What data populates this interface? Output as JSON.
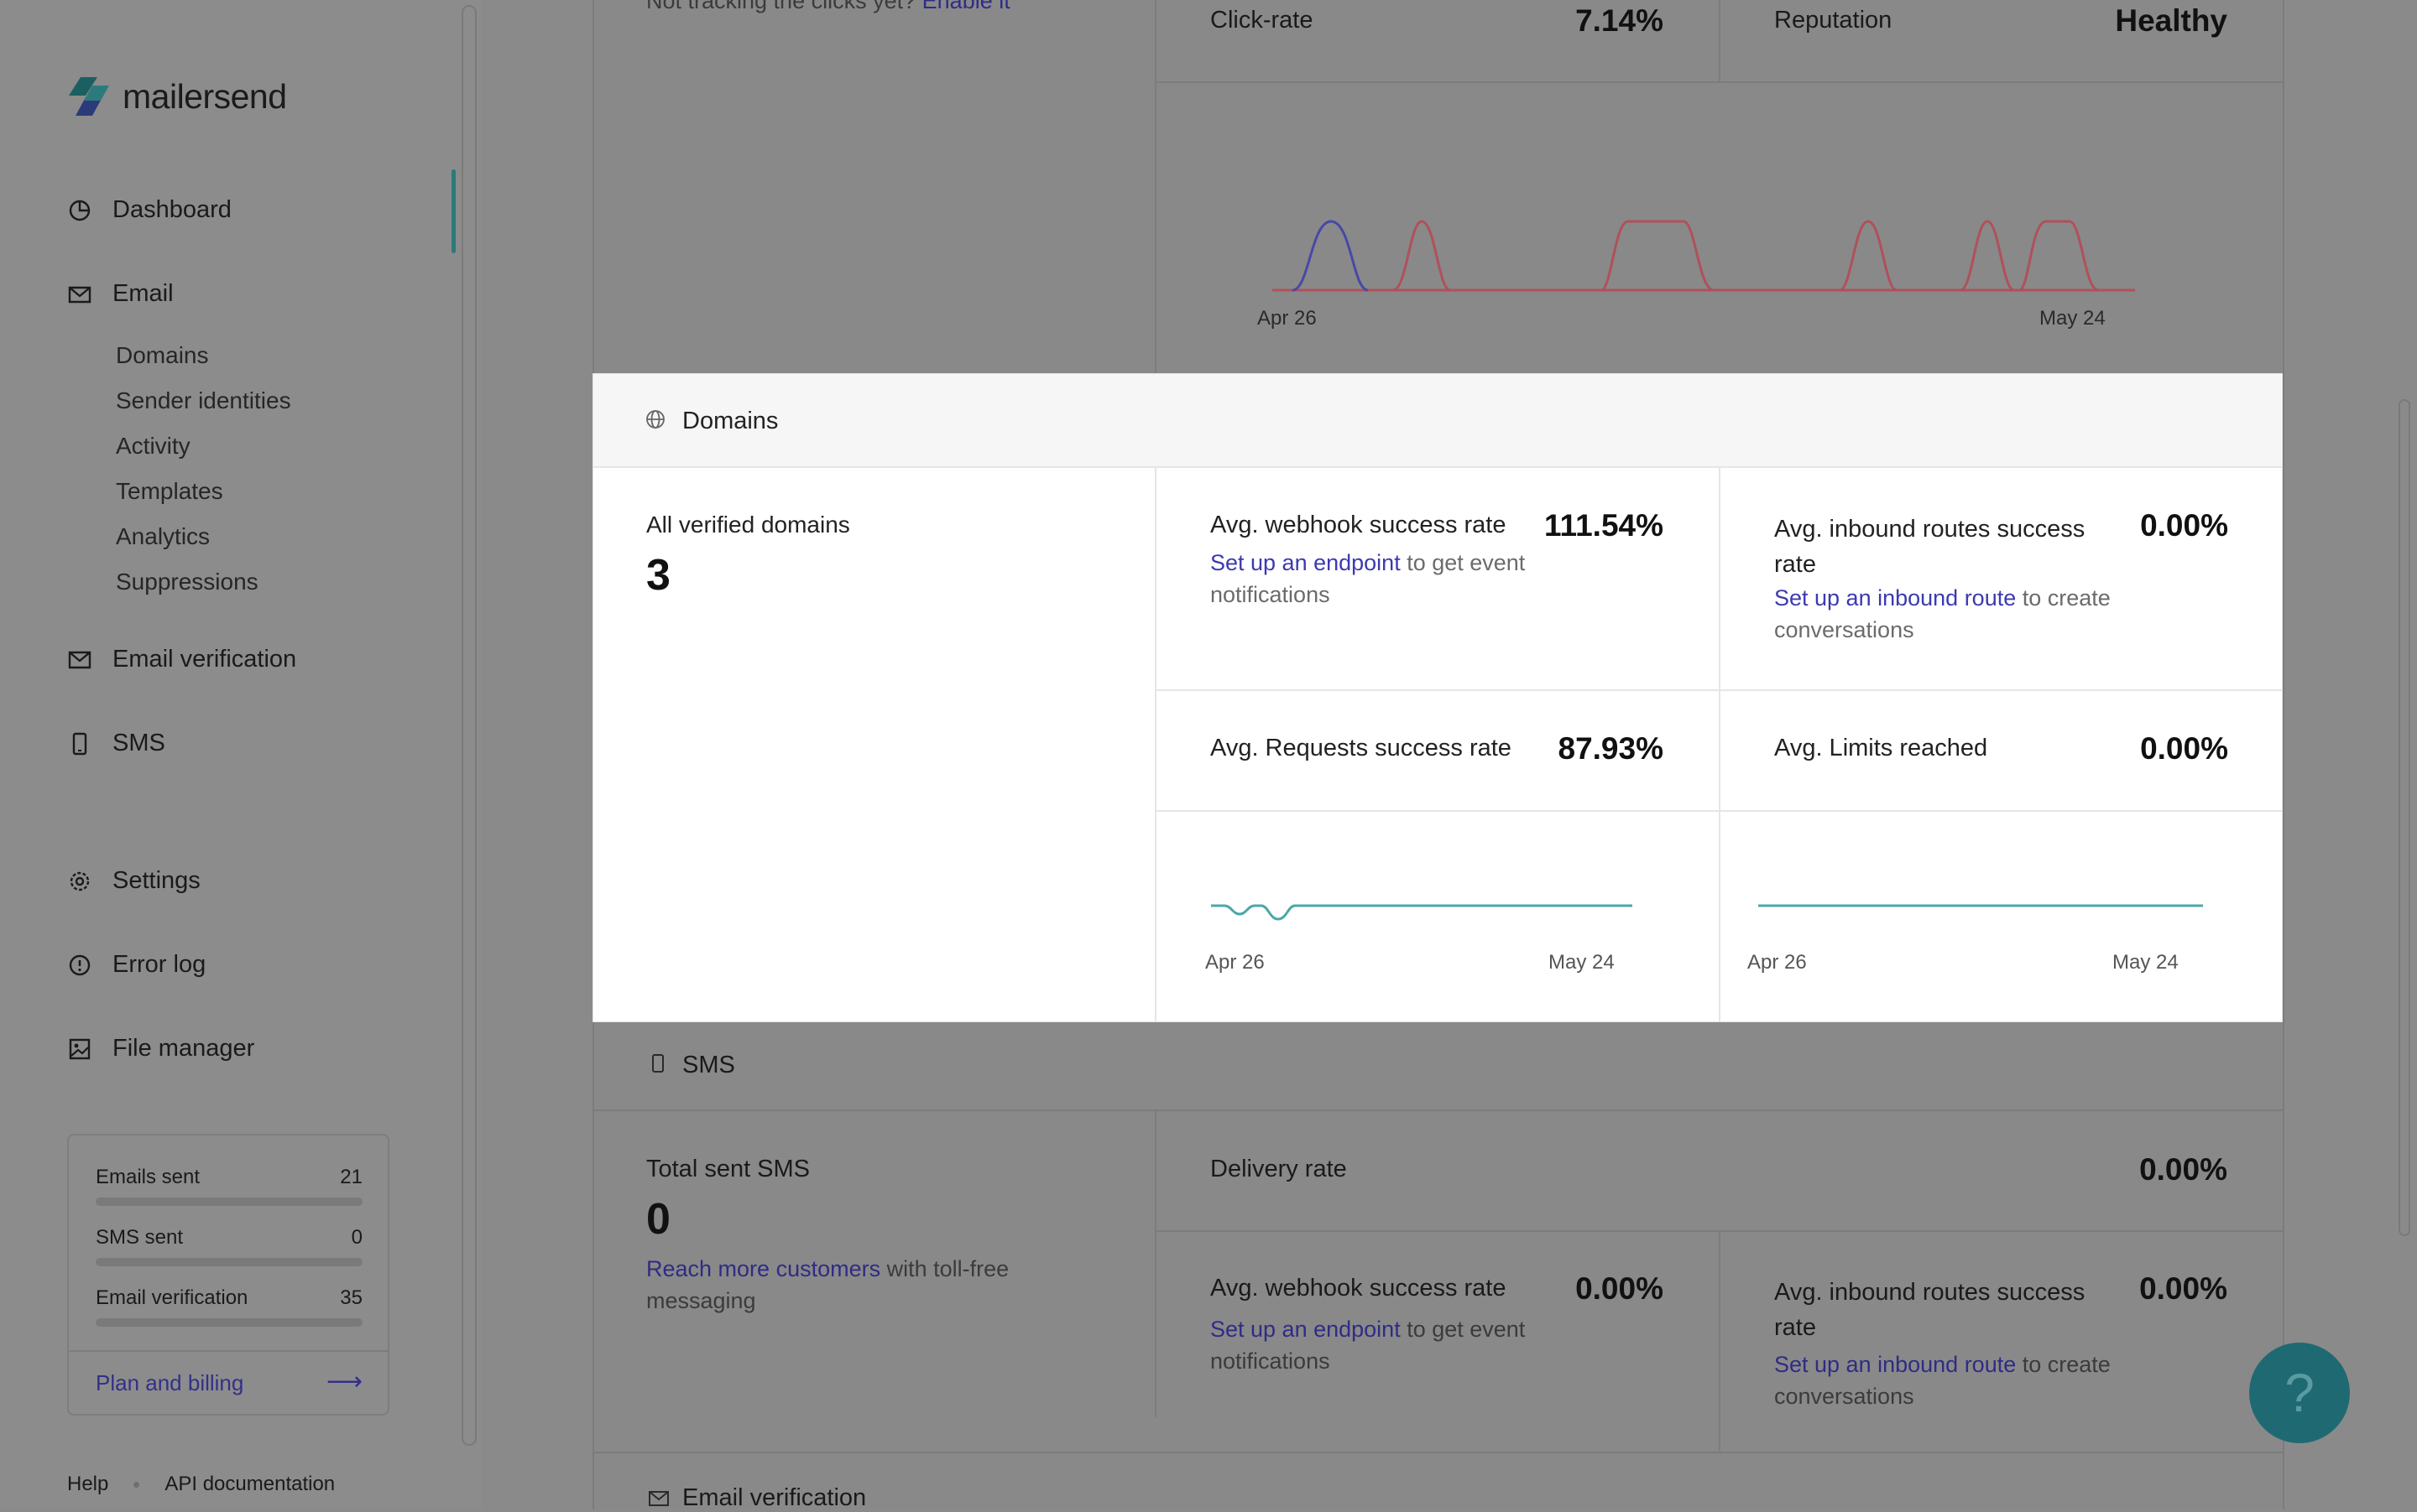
{
  "brand": {
    "name": "mailersend"
  },
  "sidebar": {
    "nav": {
      "dashboard": "Dashboard",
      "email": "Email",
      "email_verification": "Email verification",
      "sms": "SMS",
      "settings": "Settings",
      "error_log": "Error log",
      "file_manager": "File manager"
    },
    "email_sub": [
      "Domains",
      "Sender identities",
      "Activity",
      "Templates",
      "Analytics",
      "Suppressions"
    ],
    "usage": {
      "rows": [
        {
          "label": "Emails sent",
          "value": "21"
        },
        {
          "label": "SMS sent",
          "value": "0"
        },
        {
          "label": "Email verification",
          "value": "35"
        }
      ],
      "plan_link": "Plan and billing",
      "plan_arrow": "⟶"
    },
    "footer": {
      "help": "Help",
      "api_docs": "API documentation"
    }
  },
  "email_section": {
    "tracking_note": "Not tracking the clicks yet?",
    "tracking_link": "Enable it",
    "click_rate_label": "Click-rate",
    "click_rate_value": "7.14%",
    "reputation_label": "Reputation",
    "reputation_value": "Healthy",
    "chart_axis": {
      "start": "Apr 26",
      "end": "May 24"
    }
  },
  "domains": {
    "title": "Domains",
    "all_verified_label": "All verified domains",
    "all_verified_value": "3",
    "webhook_label": "Avg. webhook success rate",
    "webhook_value": "111.54%",
    "webhook_link": "Set up an endpoint",
    "webhook_suffix": " to get event notifications",
    "inbound_label": "Avg. inbound routes success rate",
    "inbound_value": "0.00%",
    "inbound_link": "Set up an inbound route",
    "inbound_suffix": " to create conversations",
    "requests_label": "Avg. Requests success rate",
    "requests_value": "87.93%",
    "limits_label": "Avg. Limits reached",
    "limits_value": "0.00%",
    "chart1_axis": {
      "start": "Apr 26",
      "end": "May 24"
    },
    "chart2_axis": {
      "start": "Apr 26",
      "end": "May 24"
    }
  },
  "sms_section": {
    "title": "SMS",
    "total_label": "Total sent SMS",
    "total_value": "0",
    "reach_link": "Reach more customers",
    "reach_suffix": " with toll-free messaging",
    "delivery_label": "Delivery rate",
    "delivery_value": "0.00%",
    "webhook_label": "Avg. webhook success rate",
    "webhook_value": "0.00%",
    "webhook_link": "Set up an endpoint",
    "webhook_suffix": " to get event notifications",
    "inbound_label": "Avg. inbound routes success rate",
    "inbound_value": "0.00%",
    "inbound_link": "Set up an inbound route",
    "inbound_suffix": " to create conversations"
  },
  "verification_section": {
    "title": "Email verification"
  },
  "help_button": {
    "glyph": "?"
  },
  "colors": {
    "accent": "#2b7a79",
    "link": "#3c3ab0",
    "chart_teal": "#4aa8a8",
    "chart_red": "#c44a58",
    "chart_blue": "#4b4bb0"
  }
}
